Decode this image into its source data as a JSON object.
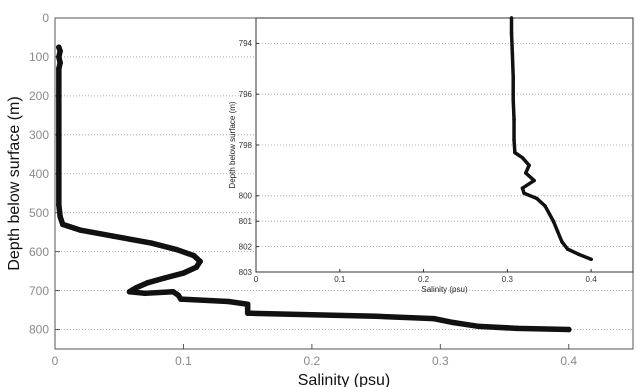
{
  "chart_data": [
    {
      "type": "line",
      "title": "",
      "xlabel": "Salinity (psu)",
      "ylabel": "Depth below surface (m)",
      "xlim": [
        0,
        0.45
      ],
      "ylim": [
        850,
        0
      ],
      "y_inverted": true,
      "grid": "horizontal-dotted",
      "xticks": [
        "0",
        "0.1",
        "0.2",
        "0.3",
        "0.4"
      ],
      "xtick_values": [
        0,
        0.1,
        0.2,
        0.3,
        0.4
      ],
      "yticks": [
        "0",
        "100",
        "200",
        "300",
        "400",
        "500",
        "600",
        "700",
        "800"
      ],
      "ytick_values": [
        0,
        100,
        200,
        300,
        400,
        500,
        600,
        700,
        800
      ],
      "color": "#111111",
      "series": [
        {
          "points": [
            [
              0.003,
              75
            ],
            [
              0.004,
              85
            ],
            [
              0.003,
              100
            ],
            [
              0.004,
              115
            ],
            [
              0.003,
              130
            ],
            [
              0.003,
              200
            ],
            [
              0.003,
              300
            ],
            [
              0.003,
              400
            ],
            [
              0.003,
              480
            ],
            [
              0.004,
              510
            ],
            [
              0.006,
              530
            ],
            [
              0.02,
              545
            ],
            [
              0.045,
              560
            ],
            [
              0.075,
              578
            ],
            [
              0.095,
              595
            ],
            [
              0.108,
              610
            ],
            [
              0.113,
              625
            ],
            [
              0.11,
              640
            ],
            [
              0.1,
              655
            ],
            [
              0.085,
              668
            ],
            [
              0.072,
              680
            ],
            [
              0.063,
              693
            ],
            [
              0.058,
              703
            ],
            [
              0.07,
              707
            ],
            [
              0.092,
              703
            ],
            [
              0.096,
              712
            ],
            [
              0.098,
              722
            ],
            [
              0.135,
              728
            ],
            [
              0.15,
              735
            ],
            [
              0.15,
              745
            ],
            [
              0.15,
              758
            ],
            [
              0.2,
              762
            ],
            [
              0.25,
              766
            ],
            [
              0.295,
              772
            ],
            [
              0.31,
              782
            ],
            [
              0.33,
              792
            ],
            [
              0.36,
              797
            ],
            [
              0.4,
              800
            ]
          ]
        }
      ]
    },
    {
      "type": "line",
      "title": "",
      "xlabel": "Salinity (psu)",
      "ylabel": "Depth below surface (m)",
      "xlim": [
        0,
        0.45
      ],
      "ylim": [
        803,
        793
      ],
      "y_inverted": true,
      "grid": "horizontal-dotted",
      "xticks": [
        "0",
        "0.1",
        "0.2",
        "0.3",
        "0.4"
      ],
      "xtick_values": [
        0,
        0.1,
        0.2,
        0.3,
        0.4
      ],
      "yticks": [
        "794",
        "796",
        "798",
        "800",
        "801",
        "802",
        "803"
      ],
      "ytick_values": [
        794,
        796,
        798,
        800,
        801,
        802,
        803
      ],
      "color": "#111111",
      "series": [
        {
          "points": [
            [
              0.305,
              793.0
            ],
            [
              0.305,
              793.6
            ],
            [
              0.306,
              794.4
            ],
            [
              0.307,
              795.3
            ],
            [
              0.307,
              796.2
            ],
            [
              0.308,
              797.0
            ],
            [
              0.308,
              797.8
            ],
            [
              0.309,
              798.3
            ],
            [
              0.318,
              798.5
            ],
            [
              0.326,
              798.8
            ],
            [
              0.322,
              799.1
            ],
            [
              0.332,
              799.4
            ],
            [
              0.318,
              799.7
            ],
            [
              0.32,
              799.9
            ],
            [
              0.335,
              800.1
            ],
            [
              0.345,
              800.4
            ],
            [
              0.35,
              800.7
            ],
            [
              0.355,
              801.0
            ],
            [
              0.36,
              801.4
            ],
            [
              0.365,
              801.8
            ],
            [
              0.372,
              802.1
            ],
            [
              0.385,
              802.3
            ],
            [
              0.4,
              802.5
            ]
          ]
        }
      ]
    }
  ]
}
